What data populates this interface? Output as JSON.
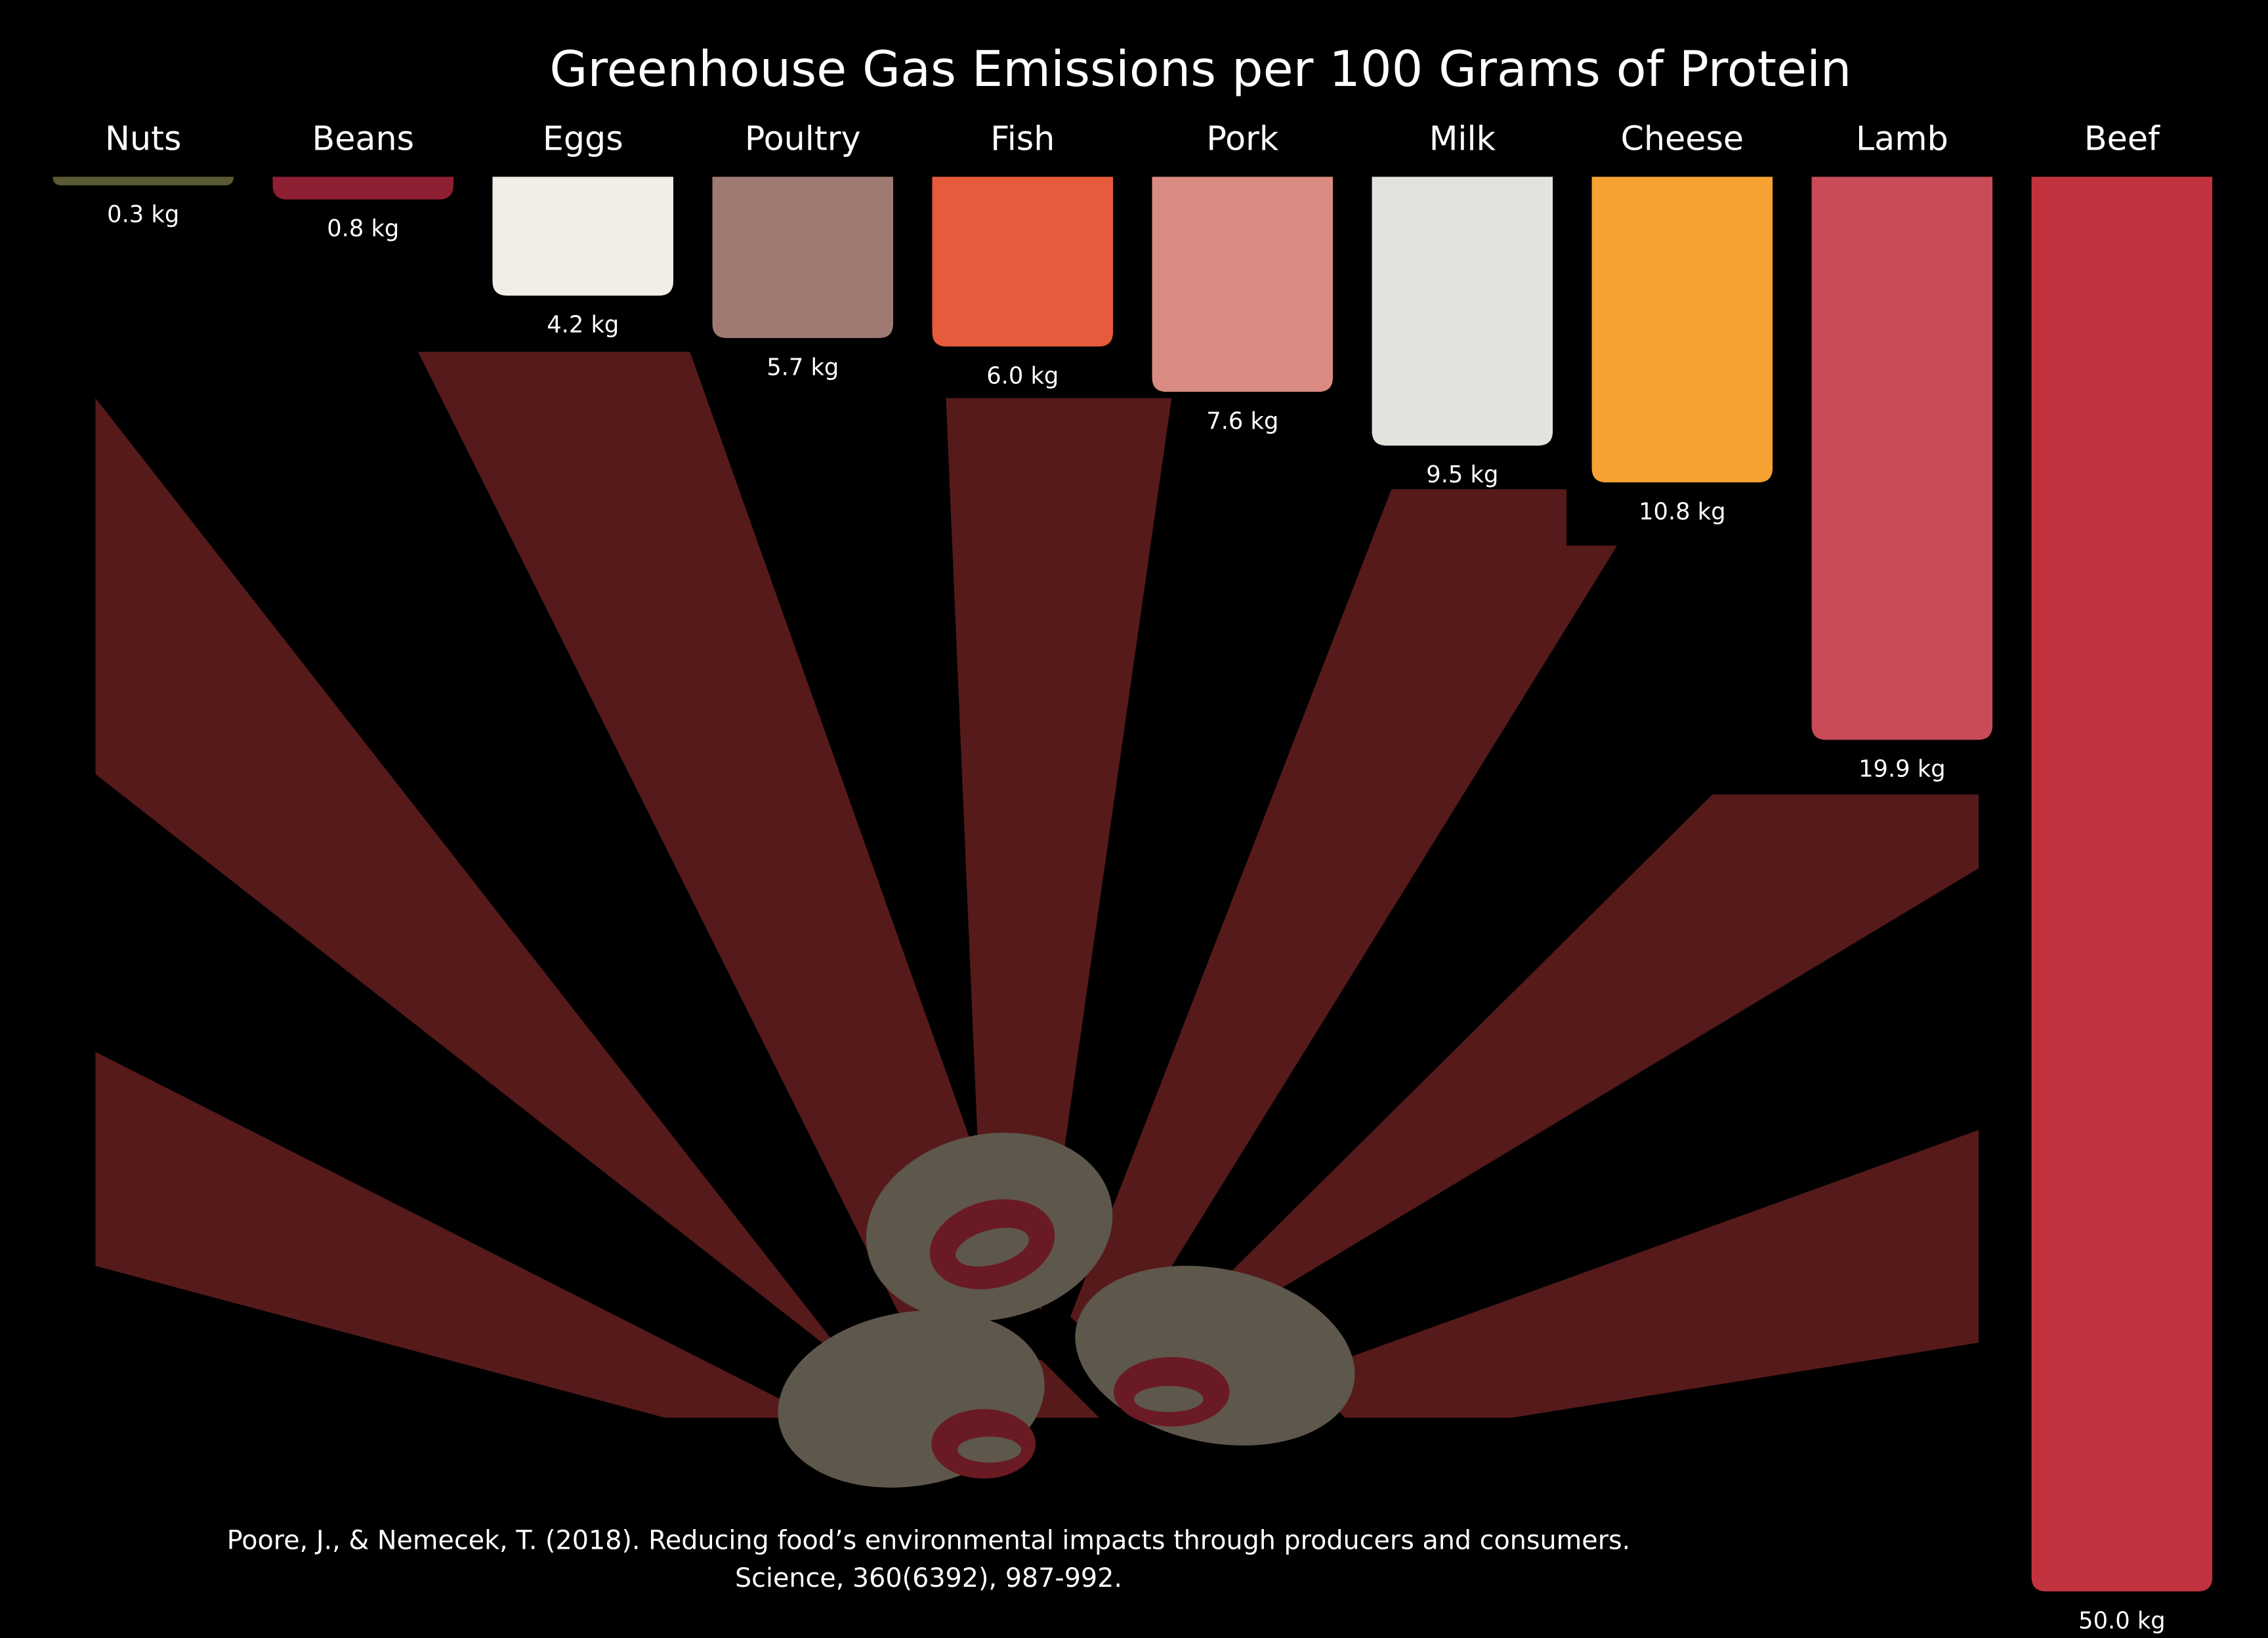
{
  "chart_data": {
    "type": "bar",
    "title": "Greenhouse Gas Emissions per 100 Grams of Protein",
    "categories": [
      "Nuts",
      "Beans",
      "Eggs",
      "Poultry",
      "Fish",
      "Pork",
      "Milk",
      "Cheese",
      "Lamb",
      "Beef"
    ],
    "values": [
      0.3,
      0.8,
      4.2,
      5.7,
      6.0,
      7.6,
      9.5,
      10.8,
      19.9,
      50.0
    ],
    "value_labels": [
      "0.3 kg",
      "0.8 kg",
      "4.2 kg",
      "5.7 kg",
      "6.0 kg",
      "7.6 kg",
      "9.5 kg",
      "10.8 kg",
      "19.9 kg",
      "50.0 kg"
    ],
    "colors": [
      "#5a5a34",
      "#8e1f33",
      "#f2eee6",
      "#9e7a72",
      "#e85a3c",
      "#d98b82",
      "#e4e2dc",
      "#f5a233",
      "#c94b58",
      "#c2323e"
    ],
    "ylim": [
      0,
      50
    ],
    "source": [
      "Poore, J., & Nemecek, T. (2018). Reducing food’s environmental impacts through producers and consumers.",
      "Science, 360(6392), 987-992."
    ]
  }
}
